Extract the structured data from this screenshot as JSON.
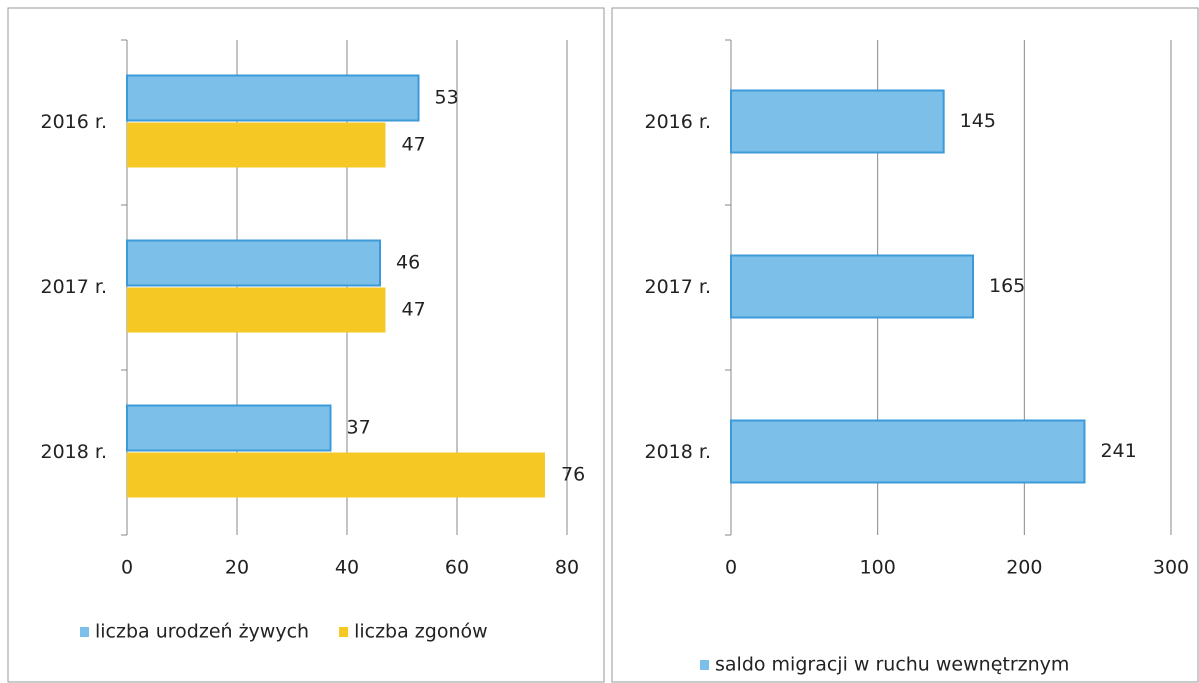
{
  "chart_data": [
    {
      "type": "bar",
      "orientation": "horizontal",
      "categories": [
        "2016 r.",
        "2017 r.",
        "2018 r."
      ],
      "series": [
        {
          "name": "liczba urodzeń żywych",
          "color": "#7cc0ea",
          "values": [
            53,
            46,
            37
          ]
        },
        {
          "name": "liczba zgonów",
          "color": "#f6c824",
          "values": [
            47,
            47,
            76
          ]
        }
      ],
      "xlim": [
        0,
        80
      ],
      "xticks": [
        0,
        20,
        40,
        60,
        80
      ],
      "grid": true,
      "legend": "bottom"
    },
    {
      "type": "bar",
      "orientation": "horizontal",
      "categories": [
        "2016 r.",
        "2017 r.",
        "2018 r."
      ],
      "series": [
        {
          "name": "saldo migracji w ruchu wewnętrznym",
          "color": "#7cc0ea",
          "values": [
            145,
            165,
            241
          ]
        }
      ],
      "xlim": [
        0,
        300
      ],
      "xticks": [
        0,
        100,
        200,
        300
      ],
      "grid": true,
      "legend": "bottom"
    }
  ]
}
